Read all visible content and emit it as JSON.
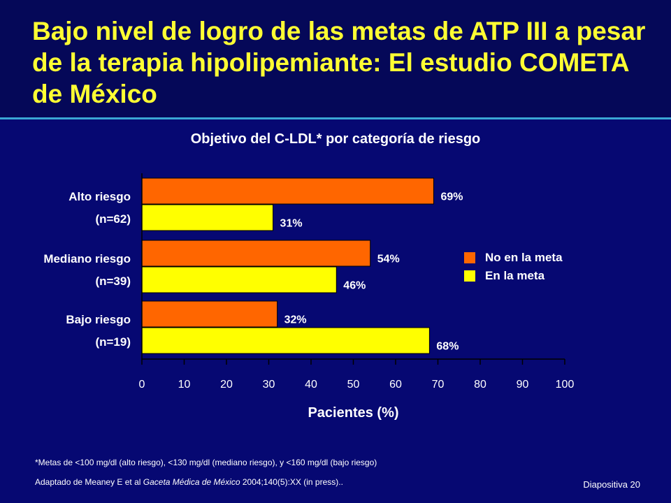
{
  "slide": {
    "title": "Bajo nivel de logro de las metas de ATP III a pesar de la terapia hipolipemiante: El estudio COMETA de México",
    "slide_number": "Diapositiva 20",
    "footnote_1": "*Metas de <100 mg/dl (alto riesgo), <130 mg/dl (mediano riesgo), y <160 mg/dl (bajo riesgo)",
    "footnote_2": {
      "before": "Adaptado de Meaney E et al ",
      "journal": "Gaceta Médica de México",
      "after": " 2004;140(5):XX (in press).."
    },
    "colors": {
      "background": "#060872",
      "title": "#ffff33",
      "rule": "#3aa7d4"
    }
  },
  "chart_data": {
    "type": "bar",
    "orientation": "horizontal",
    "title": "Objetivo del C-LDL* por categoría de riesgo",
    "xlabel": "Pacientes (%)",
    "ylabel": "",
    "xlim": [
      0,
      100
    ],
    "xticks": [
      "0",
      "10",
      "20",
      "30",
      "40",
      "50",
      "60",
      "70",
      "80",
      "90",
      "100"
    ],
    "categories": [
      {
        "name": "Alto riesgo",
        "n": "(n=62)"
      },
      {
        "name": "Mediano riesgo",
        "n": "(n=39)"
      },
      {
        "name": "Bajo riesgo",
        "n": "(n=19)"
      }
    ],
    "series": [
      {
        "name": "No en la meta",
        "color": "#ff6600",
        "values": [
          69,
          54,
          32
        ],
        "labels": [
          "69%",
          "54%",
          "32%"
        ]
      },
      {
        "name": "En la meta",
        "color": "#ffff00",
        "values": [
          31,
          46,
          68
        ],
        "labels": [
          "31%",
          "46%",
          "68%"
        ]
      }
    ],
    "grid": false,
    "legend_position": "right"
  }
}
